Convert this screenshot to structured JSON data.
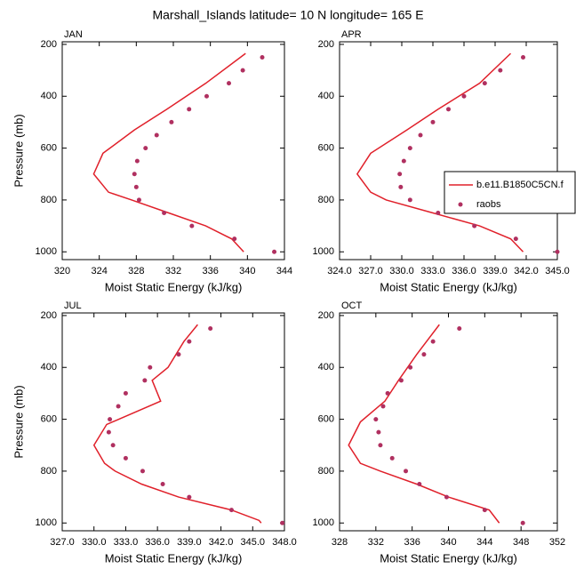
{
  "title": "Marshall_Islands  latitude= 10 N longitude= 165 E",
  "chart_data": [
    {
      "type": "line",
      "title": "JAN",
      "xlabel": "Moist Static Energy (kJ/kg)",
      "ylabel": "Pressure (mb)",
      "xlim": [
        320,
        344
      ],
      "xticks": [
        320,
        324,
        328,
        332,
        336,
        340,
        344
      ],
      "ylim": [
        1030,
        190
      ],
      "yticks": [
        200,
        400,
        600,
        800,
        1000
      ],
      "series": [
        {
          "color": "#e0202a",
          "x": [
            339.6,
            338.3,
            335.5,
            331.5,
            327.5,
            325.0,
            323.4,
            324.4,
            327.8,
            331.3,
            335.5,
            339.8
          ],
          "values": [
            1000,
            950,
            900,
            850,
            800,
            770,
            700,
            620,
            530,
            450,
            350,
            235
          ]
        },
        {
          "color": "#b03060",
          "marker": true,
          "x": [
            341.6,
            339.5,
            338.0,
            335.6,
            333.7,
            331.8,
            330.2,
            329.0,
            328.1,
            327.8,
            328.0,
            328.3,
            331.0,
            334.0,
            338.6,
            342.9
          ],
          "values": [
            250,
            300,
            350,
            400,
            450,
            500,
            550,
            600,
            650,
            700,
            750,
            800,
            850,
            900,
            950,
            1000
          ]
        }
      ]
    },
    {
      "type": "line",
      "title": "APR",
      "xlabel": "Moist Static Energy (kJ/kg)",
      "xlim": [
        324,
        345
      ],
      "xticks": [
        {
          "value": 324,
          "label": "324.0"
        },
        {
          "value": 327,
          "label": "327.0"
        },
        {
          "value": 330,
          "label": "330.0"
        },
        {
          "value": 333,
          "label": "333.0"
        },
        {
          "value": 336,
          "label": "336.0"
        },
        {
          "value": 339,
          "label": "339.0"
        },
        {
          "value": 342,
          "label": "342.0"
        },
        {
          "value": 345,
          "label": "345.0"
        }
      ],
      "ylim": [
        1030,
        190
      ],
      "yticks": [
        200,
        400,
        600,
        800,
        1000
      ],
      "legend": "right",
      "series": [
        {
          "name": "b.e11.B1850C5CN.f",
          "color": "#e0202a",
          "x": [
            341.7,
            340.5,
            337.5,
            333.0,
            328.5,
            327.0,
            325.7,
            327.0,
            330.5,
            333.5,
            337.5,
            340.5
          ],
          "values": [
            1000,
            950,
            900,
            850,
            800,
            770,
            700,
            620,
            530,
            450,
            350,
            235
          ]
        },
        {
          "name": "raobs",
          "color": "#b03060",
          "marker": true,
          "x": [
            341.7,
            339.5,
            338.0,
            336.0,
            334.5,
            333.0,
            331.8,
            330.8,
            330.2,
            329.8,
            329.9,
            330.8,
            333.5,
            337.0,
            341.0,
            345.0
          ],
          "values": [
            250,
            300,
            350,
            400,
            450,
            500,
            550,
            600,
            650,
            700,
            750,
            800,
            850,
            900,
            950,
            1000
          ]
        }
      ]
    },
    {
      "type": "line",
      "title": "JUL",
      "xlabel": "Moist Static Energy (kJ/kg)",
      "ylabel": "Pressure (mb)",
      "xlim": [
        327,
        348
      ],
      "xticks": [
        {
          "value": 327,
          "label": "327.0"
        },
        {
          "value": 330,
          "label": "330.0"
        },
        {
          "value": 333,
          "label": "333.0"
        },
        {
          "value": 336,
          "label": "336.0"
        },
        {
          "value": 339,
          "label": "339.0"
        },
        {
          "value": 342,
          "label": "342.0"
        },
        {
          "value": 345,
          "label": "345.0"
        },
        {
          "value": 348,
          "label": "348.0"
        }
      ],
      "ylim": [
        1030,
        190
      ],
      "yticks": [
        200,
        400,
        600,
        800,
        1000
      ],
      "series": [
        {
          "color": "#e0202a",
          "x": [
            345.8,
            345.6,
            343.0,
            338.0,
            334.5,
            332.0,
            331.0,
            330.0,
            331.2,
            336.3,
            335.5,
            337.0,
            338.5,
            339.8
          ],
          "values": [
            1000,
            990,
            950,
            900,
            850,
            800,
            770,
            700,
            620,
            530,
            450,
            400,
            300,
            235
          ]
        },
        {
          "color": "#b03060",
          "marker": true,
          "x": [
            341.0,
            339.0,
            338.0,
            335.3,
            334.8,
            333.0,
            332.3,
            331.5,
            331.4,
            331.8,
            333.0,
            334.6,
            336.5,
            339.0,
            343.0,
            347.8
          ],
          "values": [
            250,
            300,
            350,
            400,
            450,
            500,
            550,
            600,
            650,
            700,
            750,
            800,
            850,
            900,
            950,
            1000
          ]
        }
      ]
    },
    {
      "type": "line",
      "title": "OCT",
      "xlabel": "Moist Static Energy (kJ/kg)",
      "xlim": [
        328,
        352
      ],
      "xticks": [
        328,
        332,
        336,
        340,
        344,
        348,
        352
      ],
      "ylim": [
        1030,
        190
      ],
      "yticks": [
        200,
        400,
        600,
        800,
        1000
      ],
      "series": [
        {
          "color": "#e0202a",
          "x": [
            345.6,
            344.5,
            340.0,
            336.5,
            332.5,
            330.3,
            329.0,
            330.3,
            333.0,
            334.5,
            336.5,
            339.0
          ],
          "values": [
            1000,
            950,
            900,
            850,
            800,
            770,
            700,
            610,
            530,
            450,
            350,
            235
          ]
        },
        {
          "color": "#b03060",
          "marker": true,
          "x": [
            341.2,
            338.3,
            337.3,
            335.8,
            334.8,
            333.3,
            332.8,
            332.0,
            332.3,
            332.5,
            333.8,
            335.3,
            336.8,
            339.8,
            344.0,
            348.2
          ],
          "values": [
            250,
            300,
            350,
            400,
            450,
            500,
            550,
            600,
            650,
            700,
            750,
            800,
            850,
            900,
            950,
            1000
          ]
        }
      ]
    }
  ]
}
